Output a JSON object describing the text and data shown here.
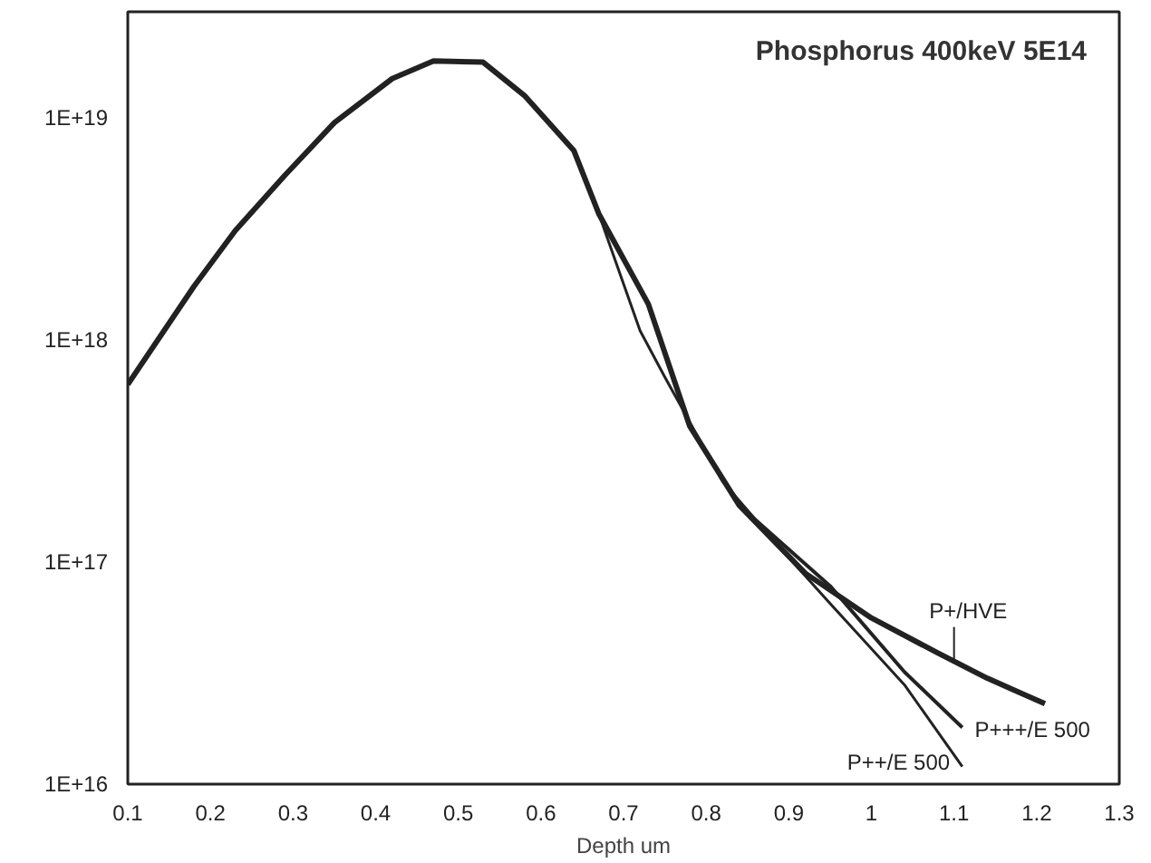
{
  "chart_data": {
    "type": "line",
    "title": "Phosphorus 400keV 5E14",
    "xlabel": "Depth um",
    "xlim": [
      0.1,
      1.3
    ],
    "xticks": [
      0.1,
      0.2,
      0.3,
      0.4,
      0.5,
      0.6,
      0.7,
      0.8,
      0.9,
      1,
      1.1,
      1.2,
      1.3
    ],
    "ylim": [
      1e+16,
      3e+19
    ],
    "yticks": [
      {
        "value": 1e+16,
        "label": "1E+16"
      },
      {
        "value": 1e+17,
        "label": "1E+17"
      },
      {
        "value": 1e+18,
        "label": "1E+18"
      },
      {
        "value": 1e+19,
        "label": "1E+19"
      }
    ],
    "log": "y",
    "grid": false,
    "legend": false,
    "marker": "none",
    "line_style": "solid",
    "series": [
      {
        "name": "P+/HVE",
        "color": "#222222",
        "x": [
          0.1,
          0.18,
          0.23,
          0.29,
          0.35,
          0.42,
          0.47,
          0.53,
          0.58,
          0.64,
          0.67,
          0.73,
          0.78,
          0.84,
          0.92,
          1.0,
          1.08,
          1.14,
          1.21
        ],
        "values": [
          6.3e+17,
          1.74e+18,
          3.1e+18,
          5.5e+18,
          9.5e+18,
          1.5e+19,
          1.8e+19,
          1.78e+19,
          1.26e+19,
          7.1e+18,
          3.7e+18,
          1.45e+18,
          4.1e+17,
          1.8e+17,
          8.9e+16,
          5.6e+16,
          3.9e+16,
          3e+16,
          2.3e+16
        ]
      },
      {
        "name": "P+++/E 500",
        "color": "#222222",
        "x": [
          0.1,
          0.18,
          0.23,
          0.29,
          0.35,
          0.42,
          0.47,
          0.53,
          0.58,
          0.64,
          0.67,
          0.73,
          0.78,
          0.84,
          0.95,
          1.04,
          1.11
        ],
        "values": [
          6.3e+17,
          1.74e+18,
          3.1e+18,
          5.5e+18,
          9.5e+18,
          1.5e+19,
          1.8e+19,
          1.78e+19,
          1.26e+19,
          7.1e+18,
          3.7e+18,
          1.45e+18,
          4.1e+17,
          1.8e+17,
          7.8e+16,
          3.2e+16,
          1.8e+16
        ]
      },
      {
        "name": "P++/E 500",
        "color": "#222222",
        "x": [
          0.1,
          0.18,
          0.23,
          0.29,
          0.35,
          0.42,
          0.47,
          0.53,
          0.58,
          0.64,
          0.67,
          0.72,
          0.75,
          0.82,
          0.89,
          0.95,
          1.04,
          1.11
        ],
        "values": [
          6.3e+17,
          1.74e+18,
          3.1e+18,
          5.5e+18,
          9.5e+18,
          1.5e+19,
          1.8e+19,
          1.78e+19,
          1.26e+19,
          7.1e+18,
          3.7e+18,
          1.1e+18,
          6.8e+17,
          2.3e+17,
          1.15e+17,
          6.5e+16,
          2.8e+16,
          1.2e+16
        ]
      }
    ]
  }
}
